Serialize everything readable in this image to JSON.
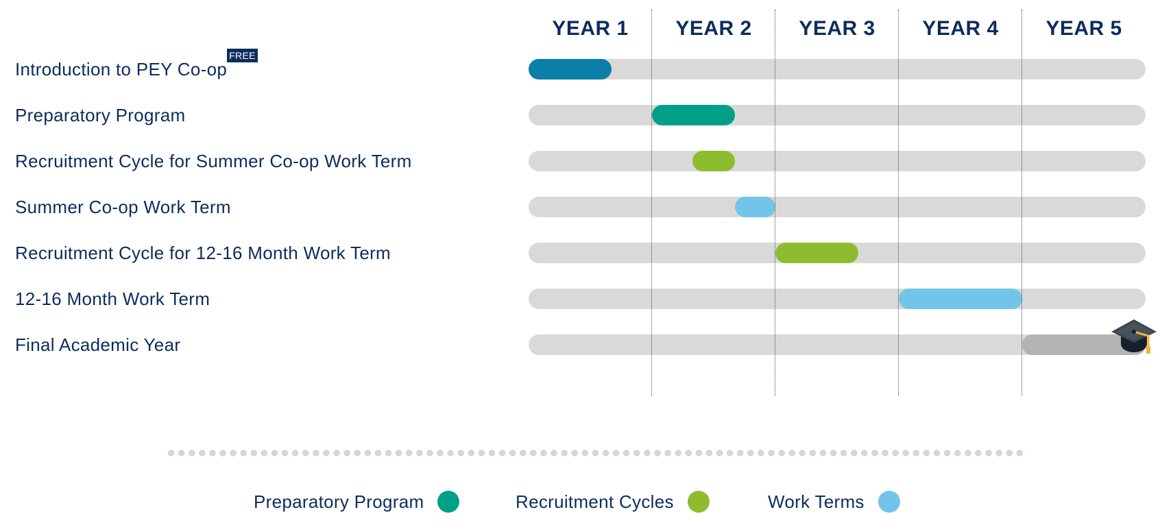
{
  "years": [
    "YEAR 1",
    "YEAR 2",
    "YEAR 3",
    "YEAR 4",
    "YEAR 5"
  ],
  "rows": [
    {
      "label": "Introduction to PEY Co-op",
      "badge": "FREE",
      "category": "introduction",
      "start_year": 0.0,
      "end_year": 0.67
    },
    {
      "label": "Preparatory Program",
      "category": "preparatory",
      "start_year": 1.0,
      "end_year": 1.67
    },
    {
      "label": "Recruitment Cycle for Summer Co-op Work Term",
      "category": "recruitment",
      "start_year": 1.33,
      "end_year": 1.67
    },
    {
      "label": "Summer Co-op Work Term",
      "category": "work-term",
      "start_year": 1.67,
      "end_year": 2.0
    },
    {
      "label": "Recruitment Cycle for 12-16 Month Work Term",
      "category": "recruitment",
      "start_year": 2.0,
      "end_year": 2.67
    },
    {
      "label": "12-16 Month Work Term",
      "category": "work-term",
      "start_year": 3.0,
      "end_year": 4.0
    },
    {
      "label": "Final Academic Year",
      "category": "final",
      "start_year": 4.0,
      "end_year": 5.0,
      "end_icon": "graduation-cap-icon"
    }
  ],
  "colors": {
    "introduction": "#0a7fa8",
    "preparatory": "#00a088",
    "recruitment": "#8dbd2f",
    "work-term": "#72c5e8",
    "final": "#b3b3b1",
    "track": "#d9d9d9",
    "text": "#0d2c5c"
  },
  "legend": [
    {
      "label": "Preparatory Program",
      "color": "#00a088"
    },
    {
      "label": "Recruitment Cycles",
      "color": "#8dbd2f"
    },
    {
      "label": "Work Terms",
      "color": "#72c5e8"
    }
  ]
}
